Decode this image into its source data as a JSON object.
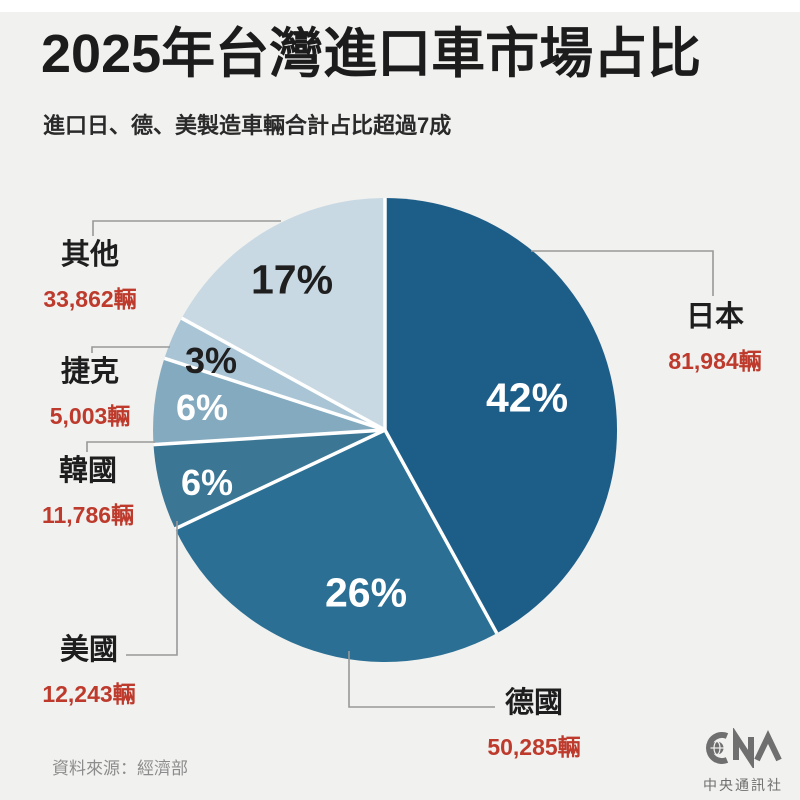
{
  "page": {
    "colors": {
      "background": "#f1f1ef",
      "title_text": "#1c1c1c",
      "accent_red": "#bd3a2c",
      "leader_line_gray": "#999999",
      "logo_gray": "#6f6f6f",
      "slice_separator": "#ffffff"
    }
  },
  "chart_data": {
    "type": "pie",
    "title": "2025年台灣進口車市場占比",
    "subtitle": "進口日、德、美製造車輛合計占比超過7成",
    "start_angle_deg": 0,
    "direction": "clockwise",
    "unit": "輛",
    "slices": [
      {
        "name": "日本",
        "value_pct": 42,
        "count": "81,984輛",
        "color": "#1d5e89",
        "pct_label": "42%",
        "pct_color": "#ffffff"
      },
      {
        "name": "德國",
        "value_pct": 26,
        "count": "50,285輛",
        "color": "#2b7094",
        "pct_label": "26%",
        "pct_color": "#ffffff"
      },
      {
        "name": "美國",
        "value_pct": 6,
        "count": "12,243輛",
        "color": "#3b7795",
        "pct_label": "6%",
        "pct_color": "#ffffff"
      },
      {
        "name": "韓國",
        "value_pct": 6,
        "count": "11,786輛",
        "color": "#84aabf",
        "pct_label": "6%",
        "pct_color": "#ffffff"
      },
      {
        "name": "捷克",
        "value_pct": 3,
        "count": "5,003輛",
        "color": "#a9c5d5",
        "pct_label": "3%",
        "pct_color": "#1f1f1f"
      },
      {
        "name": "其他",
        "value_pct": 17,
        "count": "33,862輛",
        "color": "#c8d9e3",
        "pct_label": "17%",
        "pct_color": "#1f1f1f"
      }
    ],
    "legend_position": "callouts-around-pie"
  },
  "footer": {
    "source": "資料來源：經濟部",
    "logo_name": "CNA",
    "logo_caption": "中央通訊社"
  }
}
